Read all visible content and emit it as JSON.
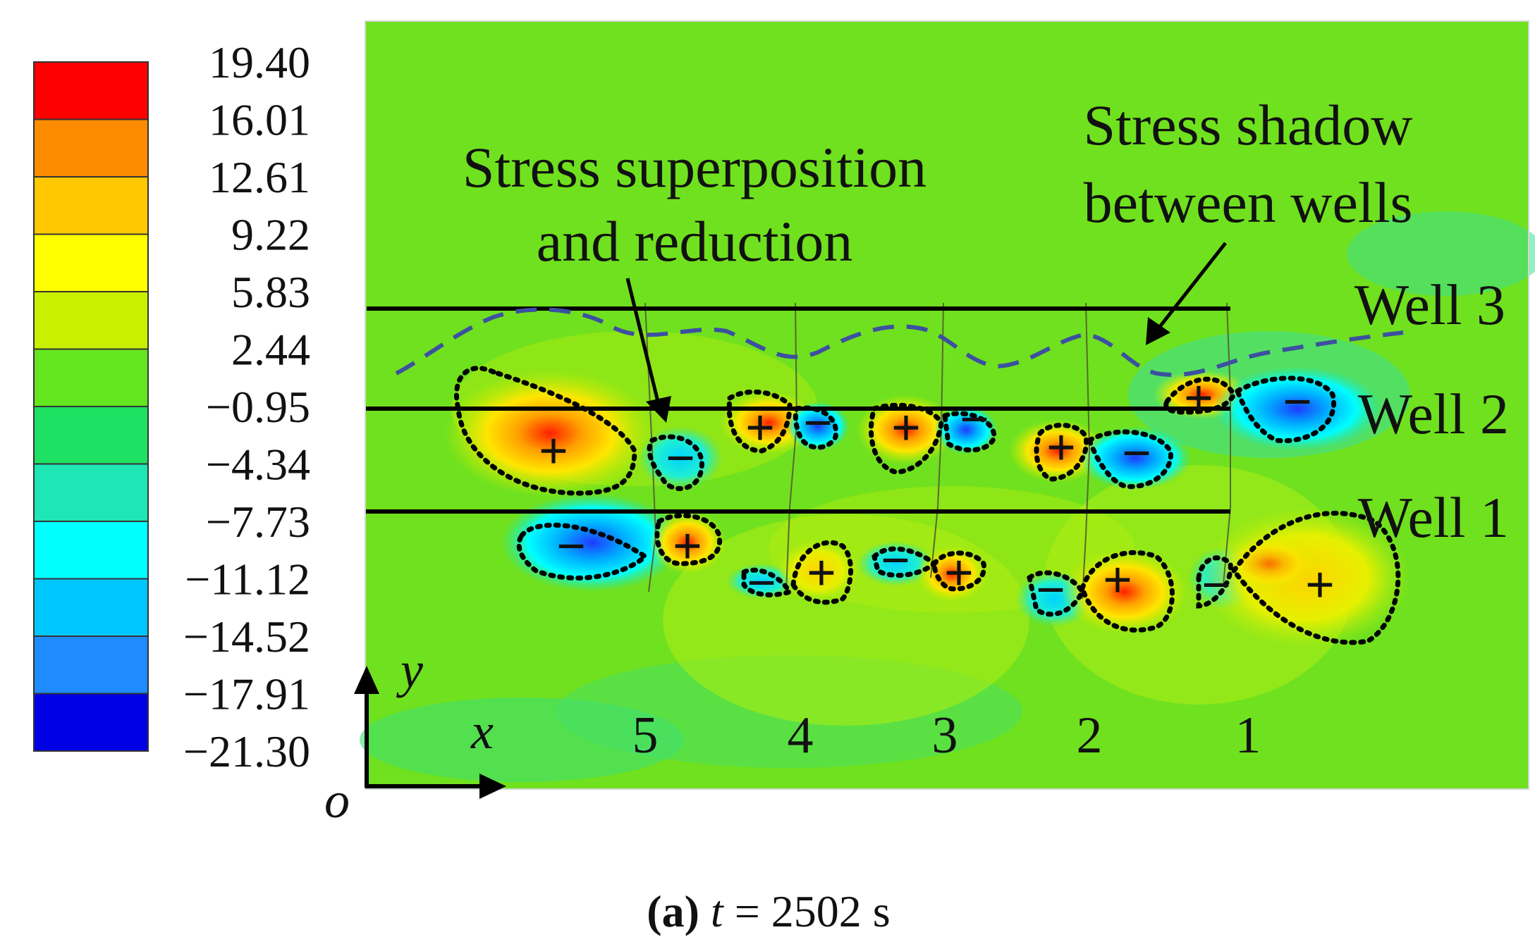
{
  "legend": {
    "colors": [
      "#ff0000",
      "#ff8c00",
      "#ffc800",
      "#ffff00",
      "#c8f000",
      "#64e61e",
      "#1ee164",
      "#1ee6b4",
      "#00ffff",
      "#00c8ff",
      "#1e8cff",
      "#0000e6"
    ],
    "values": [
      "19.40",
      "16.01",
      "12.61",
      "9.22",
      "5.83",
      "2.44",
      "−0.95",
      "−4.34",
      "−7.73",
      "−11.12",
      "−14.52",
      "−17.91",
      "−21.30"
    ]
  },
  "annotations": {
    "superposition_line1": "Stress superposition",
    "superposition_line2": "and reduction",
    "shadow_line1": "Stress shadow",
    "shadow_line2": "between wells"
  },
  "wells": {
    "well3": "Well 3",
    "well2": "Well 2",
    "well1": "Well 1"
  },
  "fracture_numbers": [
    "5",
    "4",
    "3",
    "2",
    "1"
  ],
  "signs": {
    "plus": "+",
    "minus": "−"
  },
  "axes": {
    "x": "x",
    "y": "y",
    "origin": "o"
  },
  "caption": {
    "label": "(a)",
    "t": "t",
    "rest": " = 2502 s"
  }
}
